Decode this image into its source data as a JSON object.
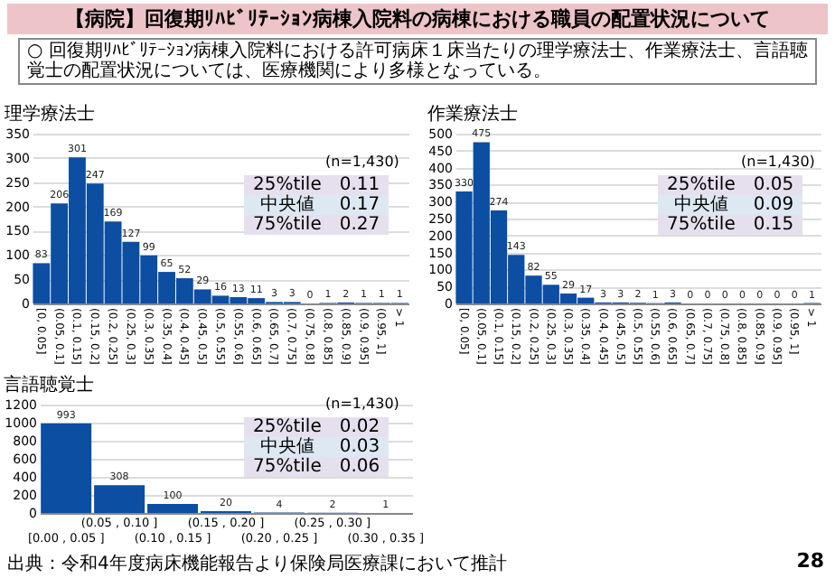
{
  "chart_data": [
    {
      "type": "bar",
      "title": "【病院】回復期ﾘﾊﾋﾞﾘﾃｰｼｮﾝ病棟入院料の病棟における職員の配置状況について",
      "subtitle": "○ 回復期ﾘﾊﾋﾞﾘﾃｰｼｮﾝ病棟入院料における許可病床１床当たりの理学療法士、作業療法士、言語聴覚士の配置状況については、医療機関により多様となっている。",
      "ylabel": "理学療法士",
      "categories": [
        "[0, 0.05]",
        "(0.05, 0.1]",
        "(0.1, 0.15]",
        "(0.15, 0.2]",
        "(0.2, 0.25]",
        "(0.25, 0.3]",
        "(0.3, 0.35]",
        "(0.35, 0.4]",
        "(0.4, 0.45]",
        "(0.45, 0.5]",
        "(0.5, 0.55]",
        "(0.55, 0.6]",
        "(0.6, 0.65]",
        "(0.65, 0.7]",
        "(0.7, 0.75]",
        "(0.75, 0.8]",
        "(0.8, 0.85]",
        "(0.85, 0.9]",
        "(0.9, 0.95]",
        "(0.95, 1]",
        "> 1"
      ],
      "values": [
        83,
        206,
        301,
        247,
        169,
        127,
        99,
        65,
        52,
        29,
        16,
        13,
        11,
        3,
        3,
        0,
        1,
        2,
        1,
        1,
        1
      ],
      "color": "#0b4ea2",
      "ylim": [
        0,
        350
      ],
      "yticks": [
        0,
        50,
        100,
        150,
        200,
        250,
        300,
        350
      ],
      "grid": "y",
      "data_labels": true,
      "annotations": [
        "(n=1,430)",
        "25%tile",
        "0.11",
        "中央値",
        "0.17",
        "75%tile",
        "0.27"
      ]
    },
    {
      "type": "bar",
      "ylabel": "作業療法士",
      "categories": [
        "[0, 0.05]",
        "(0.05, 0.1]",
        "(0.1, 0.15]",
        "(0.15, 0.2]",
        "(0.2, 0.25]",
        "(0.25, 0.3]",
        "(0.3, 0.35]",
        "(0.35, 0.4]",
        "(0.4, 0.45]",
        "(0.45, 0.5]",
        "(0.5, 0.55]",
        "(0.55, 0.6]",
        "(0.6, 0.65]",
        "(0.65, 0.7]",
        "(0.7, 0.75]",
        "(0.75, 0.8]",
        "(0.8, 0.85]",
        "(0.85, 0.9]",
        "(0.9, 0.95]",
        "(0.95, 1]",
        "> 1"
      ],
      "values": [
        330,
        475,
        274,
        143,
        82,
        55,
        29,
        17,
        3,
        3,
        2,
        1,
        3,
        0,
        0,
        0,
        0,
        0,
        0,
        0,
        1
      ],
      "color": "#0b4ea2",
      "ylim": [
        0,
        500
      ],
      "yticks": [
        0,
        50,
        100,
        150,
        200,
        250,
        300,
        350,
        400,
        450,
        500
      ],
      "grid": "y",
      "data_labels": true,
      "annotations": [
        "(n=1,430)",
        "25%tile",
        "0.05",
        "中央値",
        "0.09",
        "75%tile",
        "0.15"
      ]
    },
    {
      "type": "bar",
      "ylabel": "言語聴覚士",
      "categories": [
        "[0.00 , 0.05 ]",
        "(0.05 , 0.10 ]",
        "(0.10 , 0.15 ]",
        "(0.15 , 0.20 ]",
        "(0.20 , 0.25 ]",
        "(0.25 , 0.30 ]",
        "(0.30 , 0.35 ]"
      ],
      "values": [
        993,
        308,
        100,
        20,
        4,
        2,
        1
      ],
      "color": "#0b4ea2",
      "ylim": [
        0,
        1200
      ],
      "yticks": [
        0,
        200,
        400,
        600,
        800,
        1000,
        1200
      ],
      "grid": "y",
      "data_labels": true,
      "annotations": [
        "(n=1,430)",
        "25%tile",
        "0.02",
        "中央値",
        "0.03",
        "75%tile",
        "0.06",
        "出典：令和4年度病床機能報告より保険局医療課において推計",
        "28"
      ]
    }
  ]
}
